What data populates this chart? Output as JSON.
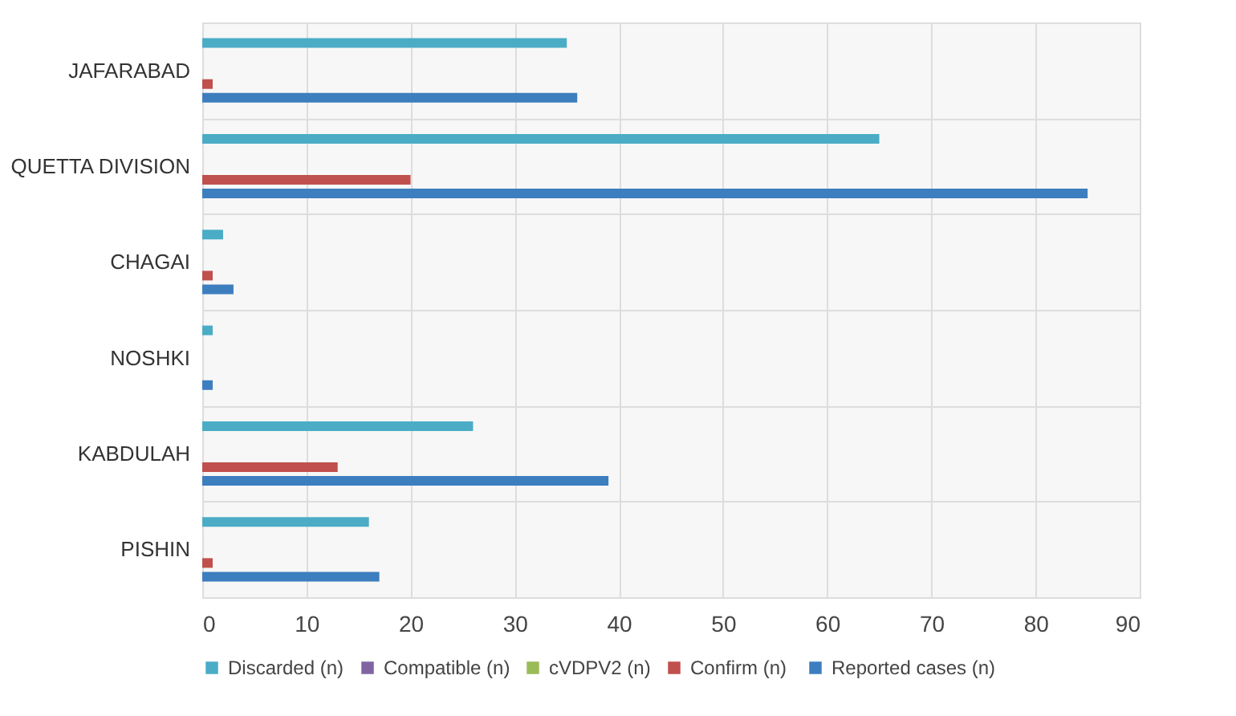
{
  "chart_data": {
    "type": "bar",
    "orientation": "horizontal",
    "categories": [
      "JAFARABAD",
      "QUETTA DIVISION",
      "CHAGAI",
      "NOSHKI",
      "KABDULAH",
      "PISHIN"
    ],
    "series": [
      {
        "name": "Discarded (n)",
        "color": "#4bacc6",
        "values": [
          35,
          65,
          2,
          1,
          26,
          16
        ]
      },
      {
        "name": "Compatible (n)",
        "color": "#8064a2",
        "values": [
          0,
          0,
          0,
          0,
          0,
          0
        ]
      },
      {
        "name": "cVDPV2 (n)",
        "color": "#9bbb59",
        "values": [
          0,
          0,
          0,
          0,
          0,
          0
        ]
      },
      {
        "name": "Confirm  (n)",
        "color": "#c0504d",
        "values": [
          1,
          20,
          1,
          0,
          13,
          1
        ]
      },
      {
        "name": "Reported cases (n)",
        "color": "#3d7ebf",
        "values": [
          36,
          85,
          3,
          1,
          39,
          17
        ]
      }
    ],
    "xlim": [
      0,
      90
    ],
    "xticks": [
      0,
      10,
      20,
      30,
      40,
      50,
      60,
      70,
      80,
      90
    ],
    "grid": true,
    "legend": "bottom"
  }
}
